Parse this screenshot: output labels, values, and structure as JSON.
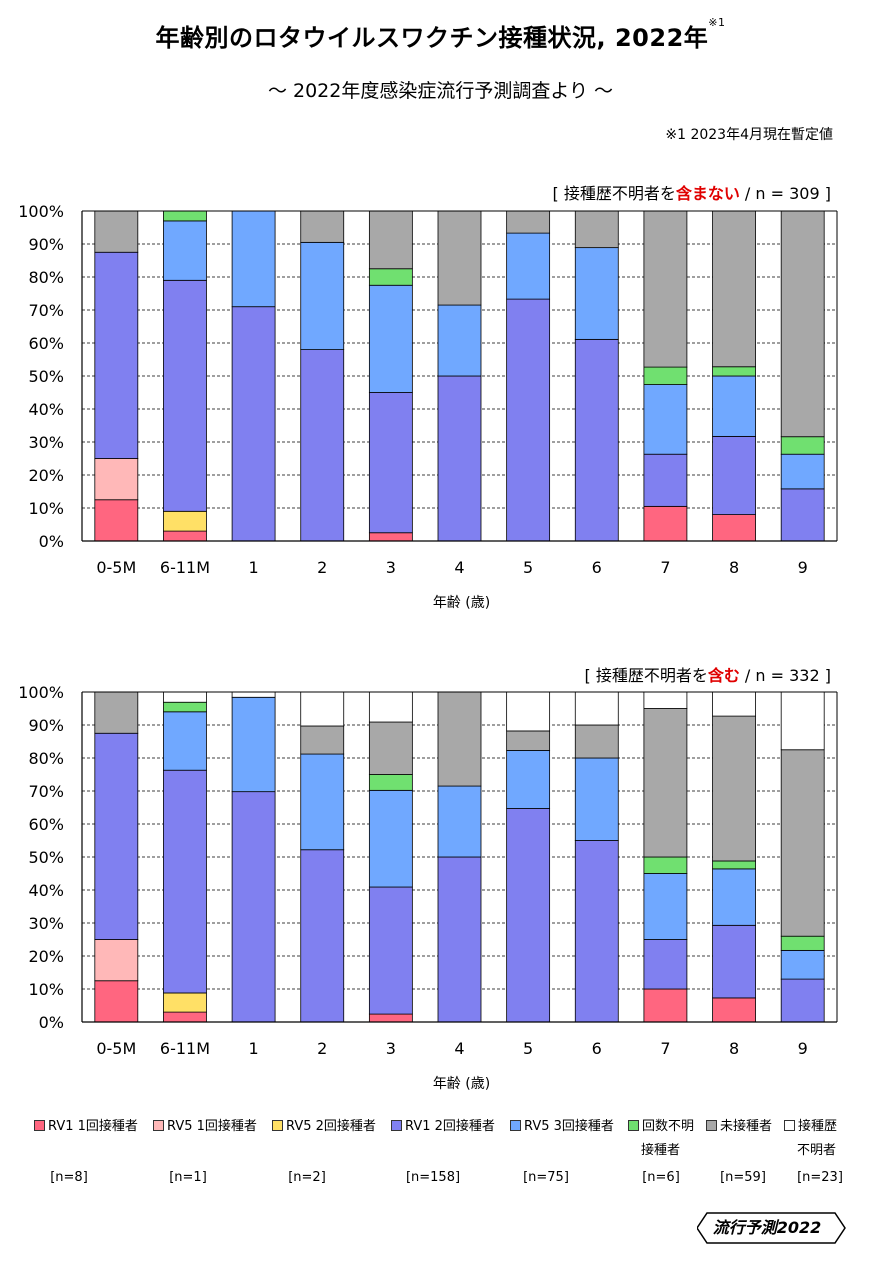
{
  "header": {
    "title": "年齢別のロタウイルスワクチン接種状況, 2022年",
    "title_sup": "※1",
    "subtitle": "～ 2022年度感染症流行予測調査より ～",
    "note": "※1  2023年4月現在暫定値"
  },
  "colors": {
    "rv1_1": "#ff6680",
    "rv5_1": "#ffb8b8",
    "rv5_2": "#ffe066",
    "rv1_2": "#8080f0",
    "rv5_3": "#70a8ff",
    "unknown_count": "#70e070",
    "unvaccinated": "#a8a8a8",
    "history_unknown": "#ffffff"
  },
  "chart_data": [
    {
      "type": "bar",
      "stacked": true,
      "caption": {
        "prefix": "[ 接種歴不明者を",
        "highlight": "含まない",
        "suffix": " / n = 309 ]"
      },
      "xlabel": "年齢 (歳)",
      "ylabel": "",
      "ylim": [
        0,
        100
      ],
      "yticks": [
        "0%",
        "10%",
        "20%",
        "30%",
        "40%",
        "50%",
        "60%",
        "70%",
        "80%",
        "90%",
        "100%"
      ],
      "categories": [
        "0-5M",
        "6-11M",
        "1",
        "2",
        "3",
        "4",
        "5",
        "6",
        "7",
        "8",
        "9"
      ],
      "series": [
        {
          "key": "rv1_1",
          "name": "RV1 1回接種者",
          "values": [
            12.5,
            3.0,
            0,
            0,
            2.5,
            0,
            0,
            0,
            10.5,
            8.0,
            0
          ]
        },
        {
          "key": "rv5_1",
          "name": "RV5 1回接種者",
          "values": [
            12.5,
            0,
            0,
            0,
            0,
            0,
            0,
            0,
            0,
            0,
            0
          ]
        },
        {
          "key": "rv5_2",
          "name": "RV5 2回接種者",
          "values": [
            0,
            6.0,
            0,
            0,
            0,
            0,
            0,
            0,
            0,
            0,
            0
          ]
        },
        {
          "key": "rv1_2",
          "name": "RV1 2回接種者",
          "values": [
            62.5,
            70.0,
            71.0,
            58.0,
            42.5,
            50.0,
            73.3,
            61.1,
            15.8,
            23.7,
            15.8
          ]
        },
        {
          "key": "rv5_3",
          "name": "RV5 3回接種者",
          "values": [
            0,
            18.0,
            29.0,
            32.5,
            32.5,
            21.5,
            20.0,
            27.8,
            21.1,
            18.3,
            10.5
          ]
        },
        {
          "key": "unknown_count",
          "name": "回数不明接種者",
          "values": [
            0,
            3.0,
            0,
            0,
            5.0,
            0,
            0,
            0,
            5.3,
            2.8,
            5.3
          ]
        },
        {
          "key": "unvaccinated",
          "name": "未接種者",
          "values": [
            12.5,
            0,
            0,
            9.5,
            17.5,
            28.5,
            6.7,
            11.1,
            47.3,
            47.2,
            68.4
          ]
        }
      ]
    },
    {
      "type": "bar",
      "stacked": true,
      "caption": {
        "prefix": "[ 接種歴不明者を",
        "highlight": "含む",
        "suffix": " / n = 332 ]"
      },
      "xlabel": "年齢 (歳)",
      "ylabel": "",
      "ylim": [
        0,
        100
      ],
      "yticks": [
        "0%",
        "10%",
        "20%",
        "30%",
        "40%",
        "50%",
        "60%",
        "70%",
        "80%",
        "90%",
        "100%"
      ],
      "categories": [
        "0-5M",
        "6-11M",
        "1",
        "2",
        "3",
        "4",
        "5",
        "6",
        "7",
        "8",
        "9"
      ],
      "series": [
        {
          "key": "rv1_1",
          "name": "RV1 1回接種者",
          "values": [
            12.5,
            3.0,
            0,
            0,
            2.4,
            0,
            0,
            0,
            10.0,
            7.3,
            0
          ]
        },
        {
          "key": "rv5_1",
          "name": "RV5 1回接種者",
          "values": [
            12.5,
            0,
            0,
            0,
            0,
            0,
            0,
            0,
            0,
            0,
            0
          ]
        },
        {
          "key": "rv5_2",
          "name": "RV5 2回接種者",
          "values": [
            0,
            5.8,
            0,
            0,
            0,
            0,
            0,
            0,
            0,
            0,
            0
          ]
        },
        {
          "key": "rv1_2",
          "name": "RV1 2回接種者",
          "values": [
            62.5,
            67.5,
            69.8,
            52.2,
            38.5,
            50.0,
            64.7,
            55.0,
            15.0,
            22.0,
            13.0
          ]
        },
        {
          "key": "rv5_3",
          "name": "RV5 3回接種者",
          "values": [
            0,
            17.7,
            28.6,
            29.0,
            29.3,
            21.5,
            17.6,
            25.0,
            20.0,
            17.1,
            8.7
          ]
        },
        {
          "key": "unknown_count",
          "name": "回数不明接種者",
          "values": [
            0,
            2.9,
            0,
            0,
            4.8,
            0,
            0,
            0,
            5.0,
            2.4,
            4.3
          ]
        },
        {
          "key": "unvaccinated",
          "name": "未接種者",
          "values": [
            12.5,
            0,
            0,
            8.5,
            15.9,
            28.5,
            5.9,
            10.0,
            45.0,
            43.9,
            56.5
          ]
        },
        {
          "key": "history_unknown",
          "name": "接種歴不明者",
          "values": [
            0,
            3.1,
            1.6,
            10.3,
            9.1,
            0,
            11.8,
            10.0,
            5.0,
            7.3,
            17.5
          ]
        }
      ]
    }
  ],
  "legend": [
    {
      "key": "rv1_1",
      "label": "RV1 1回接種者",
      "n": "[n=8]"
    },
    {
      "key": "rv5_1",
      "label": "RV5 1回接種者",
      "n": "[n=1]"
    },
    {
      "key": "rv5_2",
      "label": "RV5 2回接種者",
      "n": "[n=2]"
    },
    {
      "key": "rv1_2",
      "label": "RV1 2回接種者",
      "n": "[n=158]"
    },
    {
      "key": "rv5_3",
      "label": "RV5 3回接種者",
      "n": "[n=75]"
    },
    {
      "key": "unknown_count",
      "label": "回数不明",
      "label2": "接種者",
      "n": "[n=6]"
    },
    {
      "key": "unvaccinated",
      "label": "未接種者",
      "n": "[n=59]"
    },
    {
      "key": "history_unknown",
      "label": "接種歴",
      "label2": "不明者",
      "n": "[n=23]"
    }
  ],
  "logo": {
    "text": "流行予測2022"
  }
}
